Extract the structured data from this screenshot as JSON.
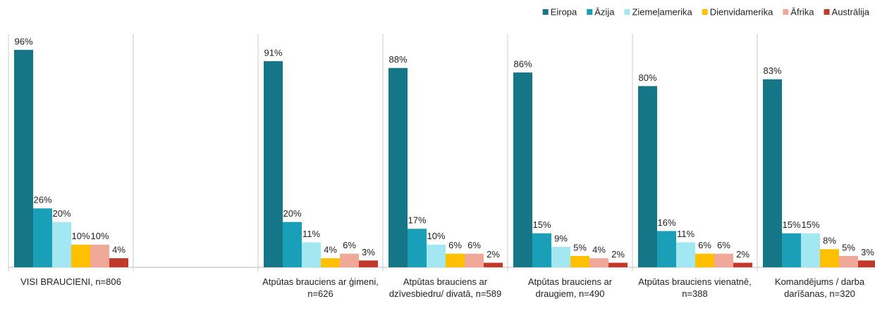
{
  "chart_data": {
    "type": "bar",
    "categories": [
      "VISI BRAUCIENI, n=806",
      null,
      "Atpūtas brauciens ar ģimeni, n=626",
      "Atpūtas brauciens ar dzīvesbiedru/ divatā, n=589",
      "Atpūtas brauciens ar draugiem, n=490",
      "Atpūtas brauciens vienatnē, n=388",
      "Komandējums / darba darīšanas, n=320"
    ],
    "series": [
      {
        "name": "Eiropa",
        "color": "#147686",
        "values": [
          96,
          null,
          91,
          88,
          86,
          80,
          83
        ],
        "value_labels": [
          "96%",
          null,
          "91%",
          "88%",
          "86%",
          "80%",
          "83%"
        ]
      },
      {
        "name": "Āzija",
        "color": "#1a9fb8",
        "values": [
          26,
          null,
          20,
          17,
          15,
          16,
          15
        ],
        "value_labels": [
          "26%",
          null,
          "20%",
          "17%",
          "15%",
          "16%",
          "15%"
        ]
      },
      {
        "name": "Ziemeļamerika",
        "color": "#a3e7f3",
        "values": [
          20,
          null,
          11,
          10,
          9,
          11,
          15
        ],
        "value_labels": [
          "20%",
          null,
          "11%",
          "10%",
          "9%",
          "11%",
          "15%"
        ]
      },
      {
        "name": "Dienvidamerika",
        "color": "#ffc000",
        "values": [
          10,
          null,
          4,
          6,
          5,
          6,
          8
        ],
        "value_labels": [
          "10%",
          null,
          "4%",
          "6%",
          "5%",
          "6%",
          "8%"
        ]
      },
      {
        "name": "Āfrika",
        "color": "#f0a898",
        "values": [
          10,
          null,
          6,
          6,
          4,
          6,
          5
        ],
        "value_labels": [
          "10%",
          null,
          "6%",
          "6%",
          "4%",
          "6%",
          "5%"
        ]
      },
      {
        "name": "Austrālija",
        "color": "#c0392b",
        "values": [
          4,
          null,
          3,
          2,
          2,
          2,
          3
        ],
        "value_labels": [
          "4%",
          null,
          "3%",
          "2%",
          "2%",
          "2%",
          "3%"
        ]
      }
    ],
    "ylim": [
      0,
      100
    ],
    "legend": "top-right"
  }
}
